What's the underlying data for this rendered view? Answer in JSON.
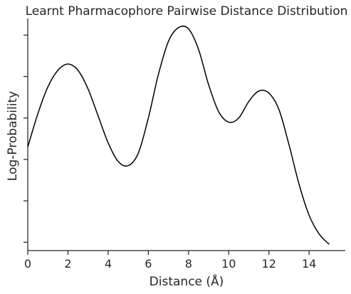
{
  "chart_data": {
    "type": "line",
    "title": "Learnt Pharmacophore Pairwise Distance Distribution",
    "xlabel": "Distance (Å)",
    "ylabel": "Log-Probability",
    "xlim": [
      0,
      15.8
    ],
    "ylim": [
      -6.2,
      -0.6
    ],
    "x_ticks": [
      0,
      2,
      4,
      6,
      8,
      10,
      12,
      14
    ],
    "y_ticks": [
      -6,
      -5,
      -4,
      -3,
      -2,
      -1
    ],
    "y_tick_labels_shown": false,
    "grid": false,
    "legend": "none",
    "line_color": "#000000",
    "series": [
      {
        "x": [
          0,
          0.5,
          1,
          1.5,
          2,
          2.5,
          3,
          3.5,
          4,
          4.5,
          5,
          5.5,
          6,
          6.5,
          7,
          7.5,
          8,
          8.5,
          9,
          9.5,
          10,
          10.5,
          11,
          11.5,
          12,
          12.5,
          13,
          13.5,
          14,
          14.5,
          15
        ],
        "y": [
          -3.7,
          -2.9,
          -2.25,
          -1.85,
          -1.7,
          -1.85,
          -2.3,
          -2.95,
          -3.6,
          -4.05,
          -4.15,
          -3.85,
          -3.0,
          -1.95,
          -1.15,
          -0.82,
          -0.85,
          -1.35,
          -2.2,
          -2.85,
          -3.1,
          -3.0,
          -2.6,
          -2.35,
          -2.4,
          -2.8,
          -3.65,
          -4.6,
          -5.35,
          -5.8,
          -6.05
        ]
      }
    ]
  }
}
